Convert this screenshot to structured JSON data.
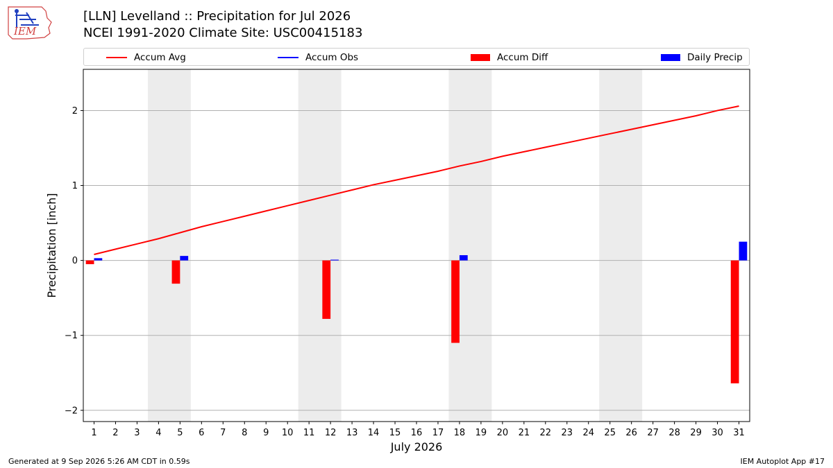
{
  "header": {
    "title_line1": "[LLN] Levelland :: Precipitation for Jul 2026",
    "title_line2": "NCEI 1991-2020 Climate Site: USC00415183",
    "logo_text": "IEM"
  },
  "legend": {
    "items": [
      {
        "label": "Accum Avg",
        "kind": "line",
        "color": "#ff0000"
      },
      {
        "label": "Accum Obs",
        "kind": "line",
        "color": "#0000ff"
      },
      {
        "label": "Accum Diff",
        "kind": "box",
        "color": "#ff0000"
      },
      {
        "label": "Daily Precip",
        "kind": "box",
        "color": "#0000ff"
      }
    ]
  },
  "footer": {
    "left": "Generated at 9 Sep 2026 5:26 AM CDT in 0.59s",
    "right": "IEM Autoplot App #17"
  },
  "chart_data": {
    "type": "bar",
    "title": "[LLN] Levelland :: Precipitation for Jul 2026",
    "subtitle": "NCEI 1991-2020 Climate Site: USC00415183",
    "xlabel": "July 2026",
    "ylabel": "Precipitation [inch]",
    "xlim": [
      0.5,
      31.5
    ],
    "ylim": [
      -2.15,
      2.55
    ],
    "yticks": [
      -2,
      -1,
      0,
      1,
      2
    ],
    "ytick_labels": [
      "−2",
      "−1",
      "0",
      "1",
      "2"
    ],
    "x": [
      1,
      2,
      3,
      4,
      5,
      6,
      7,
      8,
      9,
      10,
      11,
      12,
      13,
      14,
      15,
      16,
      17,
      18,
      19,
      20,
      21,
      22,
      23,
      24,
      25,
      26,
      27,
      28,
      29,
      30,
      31
    ],
    "grid": "horizontal",
    "weekend_shading": [
      [
        4,
        5
      ],
      [
        11,
        12
      ],
      [
        18,
        19
      ],
      [
        25,
        26
      ]
    ],
    "series": [
      {
        "name": "Accum Avg",
        "type": "line",
        "color": "#ff0000",
        "values": [
          0.08,
          0.15,
          0.22,
          0.29,
          0.37,
          0.45,
          0.52,
          0.59,
          0.66,
          0.73,
          0.8,
          0.87,
          0.94,
          1.01,
          1.07,
          1.13,
          1.19,
          1.26,
          1.32,
          1.39,
          1.45,
          1.51,
          1.57,
          1.63,
          1.69,
          1.75,
          1.81,
          1.87,
          1.93,
          2.0,
          2.06
        ]
      },
      {
        "name": "Accum Diff",
        "type": "bar",
        "color": "#ff0000",
        "points": [
          [
            1,
            -0.05
          ],
          [
            5,
            -0.31
          ],
          [
            12,
            -0.78
          ],
          [
            18,
            -1.1
          ],
          [
            31,
            -1.64
          ]
        ]
      },
      {
        "name": "Daily Precip",
        "type": "bar",
        "color": "#0000ff",
        "points": [
          [
            1,
            0.03
          ],
          [
            5,
            0.06
          ],
          [
            12,
            0.01
          ],
          [
            18,
            0.07
          ],
          [
            31,
            0.25
          ]
        ]
      }
    ]
  }
}
